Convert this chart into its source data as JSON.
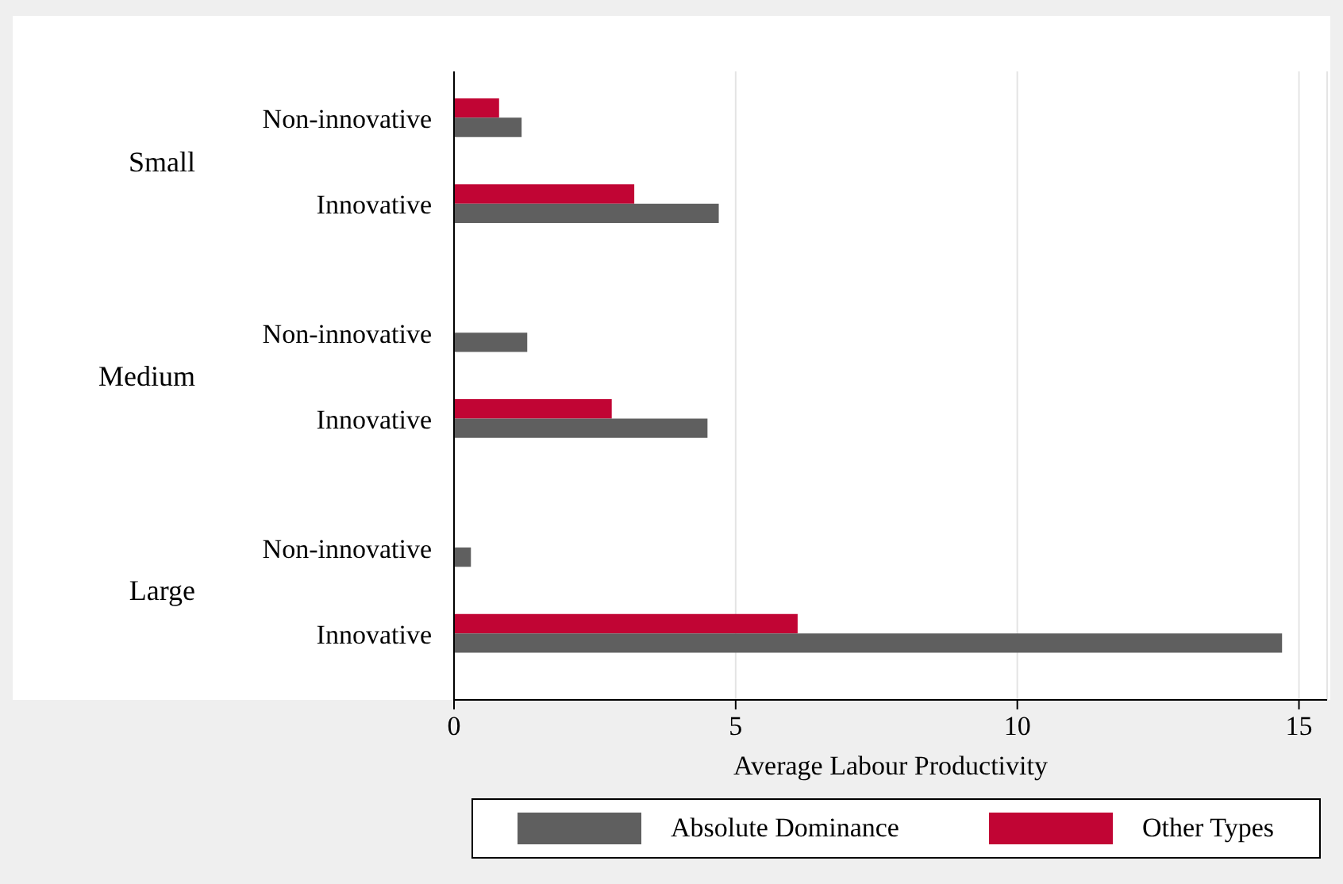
{
  "chart_data": {
    "type": "bar",
    "orientation": "horizontal",
    "xlabel": "Average Labour Productivity",
    "categories": [
      "Non-innovative",
      "Innovative",
      "Non-innovative",
      "Innovative",
      "Non-innovative",
      "Innovative"
    ],
    "annotations": [
      "Small",
      "Medium",
      "Large"
    ],
    "series": [
      {
        "name": "Absolute Dominance",
        "color": "#5f5f5f",
        "values": [
          1.2,
          4.7,
          1.3,
          4.5,
          0.3,
          14.7
        ]
      },
      {
        "name": "Other Types",
        "color": "#c10534",
        "values": [
          0.8,
          3.2,
          null,
          2.8,
          null,
          6.1
        ]
      }
    ],
    "xlim": [
      0,
      15.5
    ],
    "xticks": [
      0,
      5,
      10,
      15
    ],
    "grid": "x",
    "legend": "bottom"
  }
}
